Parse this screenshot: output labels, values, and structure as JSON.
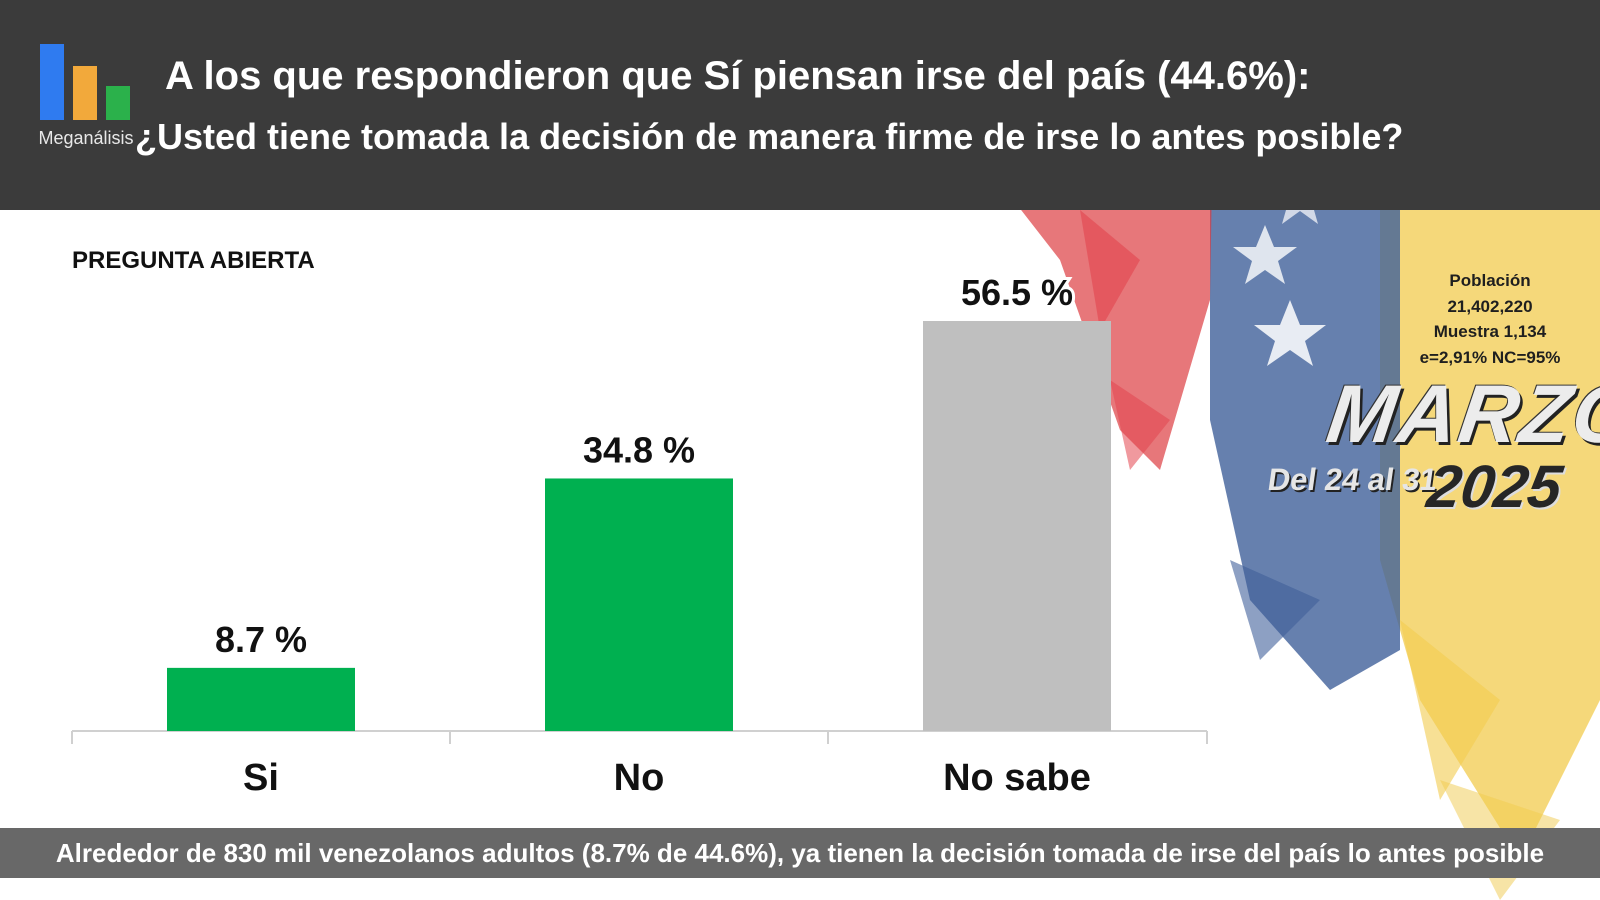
{
  "brand": {
    "name": "Meganálisis"
  },
  "header": {
    "title_line1": "A los que respondieron que Sí piensan irse del país (44.6%):",
    "title_line2": "¿Usted tiene tomada la decisión de manera firme de irse lo antes posible?"
  },
  "subtitle": "PREGUNTA ABIERTA",
  "info": {
    "poblacion_label": "Población",
    "poblacion_value": "21,402,220",
    "muestra": "Muestra 1,134",
    "error": "e=2,91%  NC=95%"
  },
  "period": {
    "month": "MARZO",
    "days": "Del 24 al 31",
    "year": "2025"
  },
  "footer": "Alrededor de 830 mil venezolanos adultos (8.7% de 44.6%), ya tienen la decisión tomada de irse del país lo antes posible",
  "colors": {
    "green": "#00B050",
    "gray": "#BFBFBF",
    "header_bg": "#3B3B3B",
    "footer_bg": "#686868"
  },
  "chart_data": {
    "type": "bar",
    "categories": [
      "Si",
      "No",
      "No sabe"
    ],
    "values": [
      8.7,
      34.8,
      56.5
    ],
    "labels": [
      "8.7 %",
      "34.8 %",
      "56.5 %"
    ],
    "bar_colors": [
      "#00B050",
      "#00B050",
      "#BFBFBF"
    ],
    "ylim": [
      0,
      56.5
    ],
    "grid": false,
    "legend": "none"
  }
}
